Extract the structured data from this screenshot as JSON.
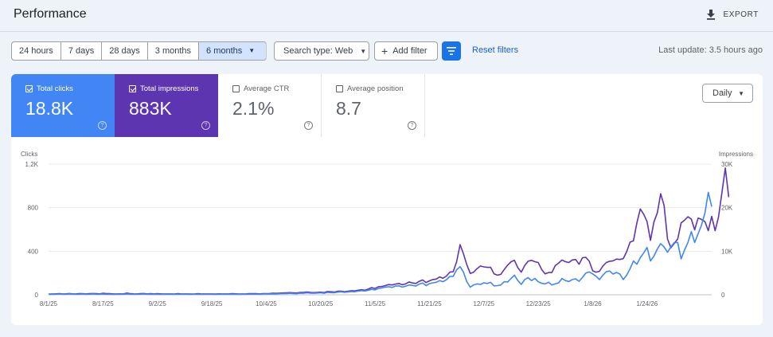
{
  "header": {
    "title": "Performance",
    "export_label": "EXPORT",
    "export_icon": "download-icon"
  },
  "filters": {
    "date_ranges": [
      "24 hours",
      "7 days",
      "28 days",
      "3 months",
      "6 months"
    ],
    "active_range": "6 months",
    "search_type_label": "Search type: Web",
    "add_filter_label": "Add filter",
    "reset_label": "Reset filters",
    "last_update": "Last update: 3.5 hours ago"
  },
  "metrics": [
    {
      "label": "Total clicks",
      "value": "18.8K",
      "checked": true,
      "color": "#4285f4"
    },
    {
      "label": "Total impressions",
      "value": "883K",
      "checked": true,
      "color": "#5e35b1"
    },
    {
      "label": "Average CTR",
      "value": "2.1%",
      "checked": false
    },
    {
      "label": "Average position",
      "value": "8.7",
      "checked": false
    }
  ],
  "granularity": "Daily",
  "colors": {
    "accent": "#1a73e8",
    "clicks": "#4285f4",
    "impressions": "#5e35b1"
  },
  "chart_data": {
    "type": "line",
    "left_axis": {
      "label": "Clicks",
      "ticks": [
        "1.2K",
        "800",
        "400",
        "0"
      ],
      "tick_values": [
        1200,
        800,
        400,
        0
      ],
      "range": [
        0,
        1200
      ]
    },
    "right_axis": {
      "label": "Impressions",
      "ticks": [
        "30K",
        "20K",
        "10K",
        "0"
      ],
      "tick_values": [
        30000,
        20000,
        10000,
        0
      ],
      "range": [
        0,
        30000
      ]
    },
    "x_ticks": [
      "8/1/25",
      "8/17/25",
      "9/2/25",
      "9/18/25",
      "10/4/25",
      "10/20/25",
      "11/5/25",
      "11/21/25",
      "12/7/25",
      "12/23/25",
      "1/8/26",
      "1/24/26"
    ],
    "grid": true,
    "series": [
      {
        "name": "Clicks",
        "axis": "left",
        "values": [
          5,
          6,
          5,
          7,
          6,
          5,
          8,
          6,
          5,
          6,
          7,
          5,
          6,
          8,
          6,
          5,
          7,
          5,
          6,
          4,
          5,
          6,
          5,
          8,
          6,
          5,
          5,
          6,
          7,
          5,
          6,
          5,
          6,
          4,
          5,
          5,
          5,
          4,
          6,
          5,
          5,
          5,
          4,
          5,
          6,
          4,
          5,
          5,
          5,
          4,
          6,
          5,
          5,
          5,
          6,
          5,
          4,
          5,
          5,
          6,
          6,
          6,
          5,
          7,
          7,
          8,
          9,
          8,
          10,
          12,
          12,
          14,
          12,
          10,
          15,
          14,
          18,
          15,
          14,
          16,
          18,
          14,
          22,
          20,
          18,
          24,
          28,
          22,
          26,
          30,
          28,
          34,
          38,
          35,
          42,
          50,
          45,
          58,
          62,
          70,
          74,
          68,
          80,
          82,
          70,
          78,
          90,
          86,
          80,
          98,
          108,
          84,
          102,
          110,
          115,
          130,
          120,
          138,
          168,
          170,
          230,
          258,
          208,
          120,
          70,
          90,
          100,
          95,
          110,
          104,
          114,
          82,
          84,
          90,
          120,
          118,
          150,
          180,
          130,
          95,
          140,
          158,
          130,
          150,
          120,
          105,
          100,
          115,
          90,
          100,
          110,
          150,
          130,
          122,
          140,
          146,
          124,
          160,
          200,
          210,
          192,
          170,
          140,
          180,
          212,
          218,
          190,
          205,
          190,
          140,
          180,
          240,
          310,
          280,
          340,
          385,
          435,
          310,
          355,
          420,
          470,
          440,
          390,
          440,
          480,
          480,
          330,
          410,
          480,
          580,
          480,
          560,
          640,
          750,
          940,
          810
        ]
      },
      {
        "name": "Impressions",
        "axis": "right",
        "values": [
          150,
          200,
          200,
          250,
          225,
          200,
          300,
          225,
          200,
          250,
          275,
          200,
          250,
          300,
          250,
          200,
          350,
          250,
          250,
          200,
          200,
          225,
          200,
          375,
          250,
          225,
          200,
          250,
          300,
          200,
          250,
          200,
          250,
          200,
          200,
          200,
          200,
          175,
          250,
          200,
          200,
          200,
          175,
          200,
          250,
          175,
          200,
          200,
          200,
          175,
          225,
          200,
          200,
          200,
          250,
          225,
          175,
          200,
          200,
          250,
          250,
          250,
          200,
          275,
          275,
          300,
          350,
          325,
          375,
          425,
          450,
          500,
          450,
          400,
          550,
          525,
          625,
          550,
          500,
          550,
          600,
          500,
          750,
          700,
          625,
          800,
          850,
          700,
          825,
          925,
          900,
          1050,
          1150,
          1050,
          1300,
          1650,
          1450,
          1850,
          1900,
          2100,
          2350,
          2250,
          2450,
          2600,
          2300,
          2500,
          2950,
          2700,
          2600,
          3100,
          3400,
          2800,
          3200,
          3500,
          3600,
          4100,
          3800,
          4300,
          5200,
          5300,
          7600,
          11500,
          9400,
          6900,
          4900,
          5200,
          6000,
          6600,
          6400,
          6300,
          6300,
          4800,
          4500,
          4700,
          5800,
          6800,
          7600,
          7900,
          6200,
          5200,
          6700,
          7700,
          7900,
          7600,
          7400,
          5800,
          4800,
          5100,
          5100,
          6700,
          7300,
          8000,
          7600,
          7400,
          8000,
          8100,
          7000,
          8500,
          8600,
          7700,
          5500,
          5200,
          5400,
          6600,
          7400,
          7700,
          7800,
          8200,
          8100,
          8300,
          9900,
          12100,
          12400,
          16500,
          19700,
          18500,
          16800,
          12500,
          16700,
          18800,
          23200,
          20500,
          12800,
          10800,
          11800,
          12800,
          16500,
          17100,
          17900,
          17400,
          14900,
          17600,
          17300,
          16800,
          14700,
          18000,
          14700,
          17800,
          23400,
          29100,
          22400
        ]
      }
    ]
  }
}
